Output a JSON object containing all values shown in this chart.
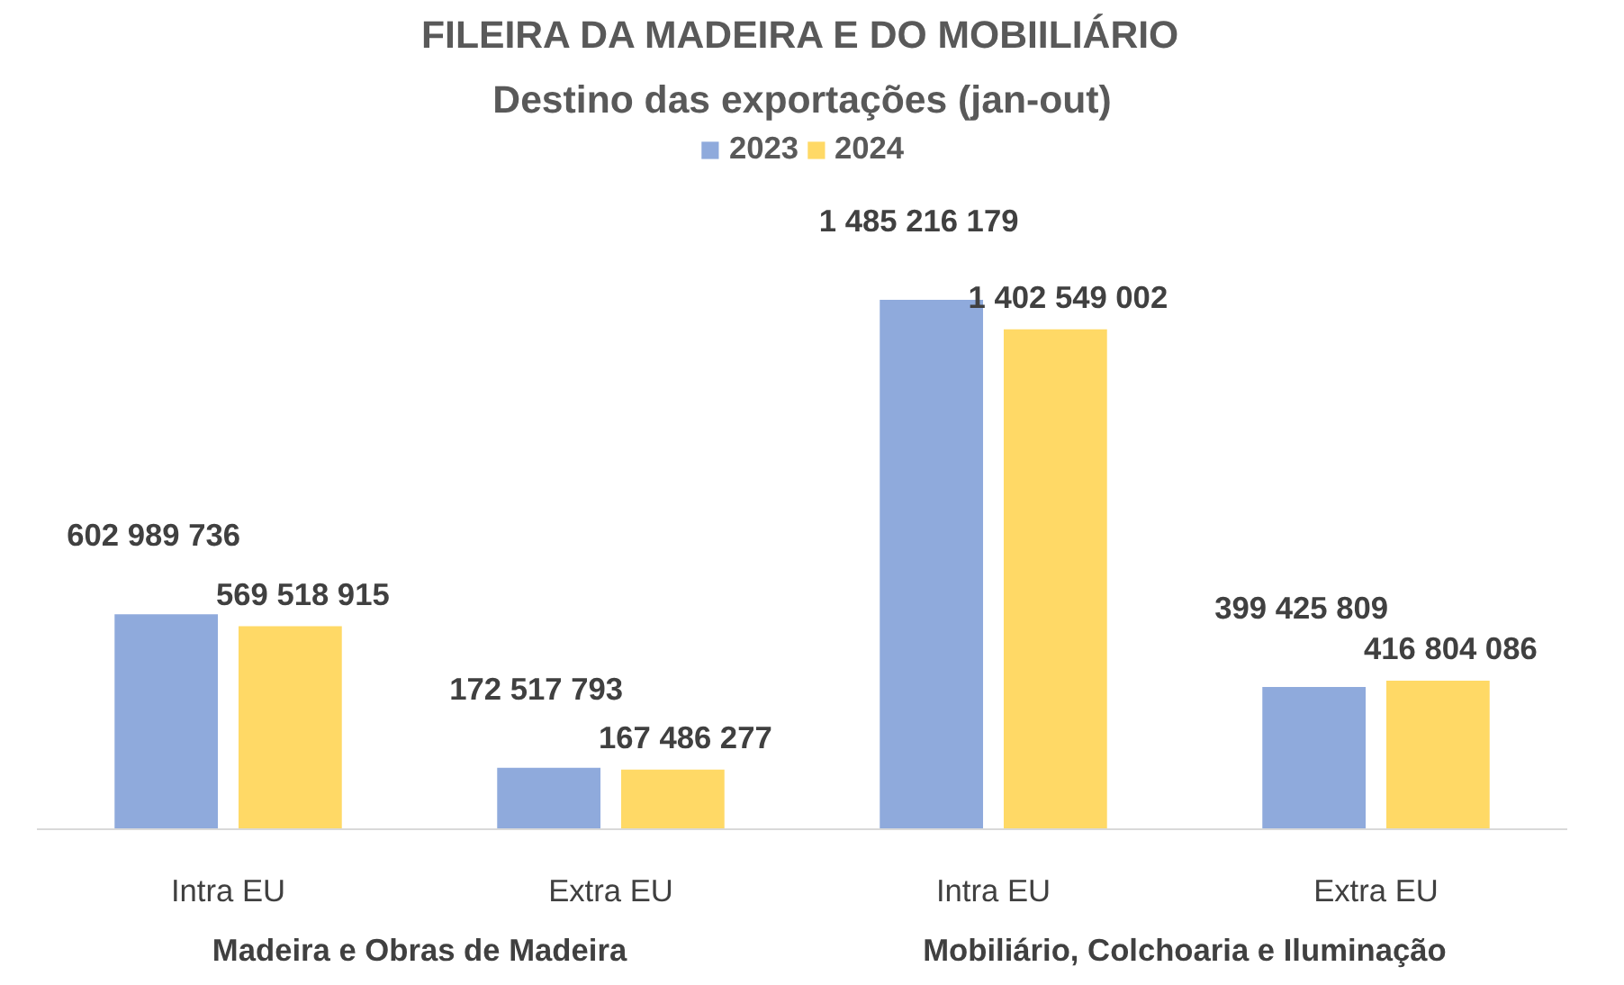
{
  "chart_data": {
    "type": "bar",
    "title": "FILEIRA DA MADEIRA E DO MOBIILIÁRIO",
    "subtitle": "Destino das exportações (jan-out)",
    "categories": [
      "Intra EU",
      "Extra EU",
      "Intra EU",
      "Extra EU"
    ],
    "annotations": [
      "Madeira e Obras de Madeira",
      "Mobiliário, Colchoaria e Iluminação"
    ],
    "series": [
      {
        "name": "2023",
        "color": "#8faadc",
        "values": [
          602989736,
          172517793,
          1485216179,
          399425809
        ],
        "value_labels": [
          "602 989 736",
          "172 517 793",
          "1 485 216 179",
          "399 425 809"
        ]
      },
      {
        "name": "2024",
        "color": "#ffd966",
        "values": [
          569518915,
          167486277,
          1402549002,
          416804086
        ],
        "value_labels": [
          "569 518 915",
          "167 486 277",
          "1 402 549 002",
          "416 804 086"
        ]
      }
    ],
    "legend": "top"
  }
}
